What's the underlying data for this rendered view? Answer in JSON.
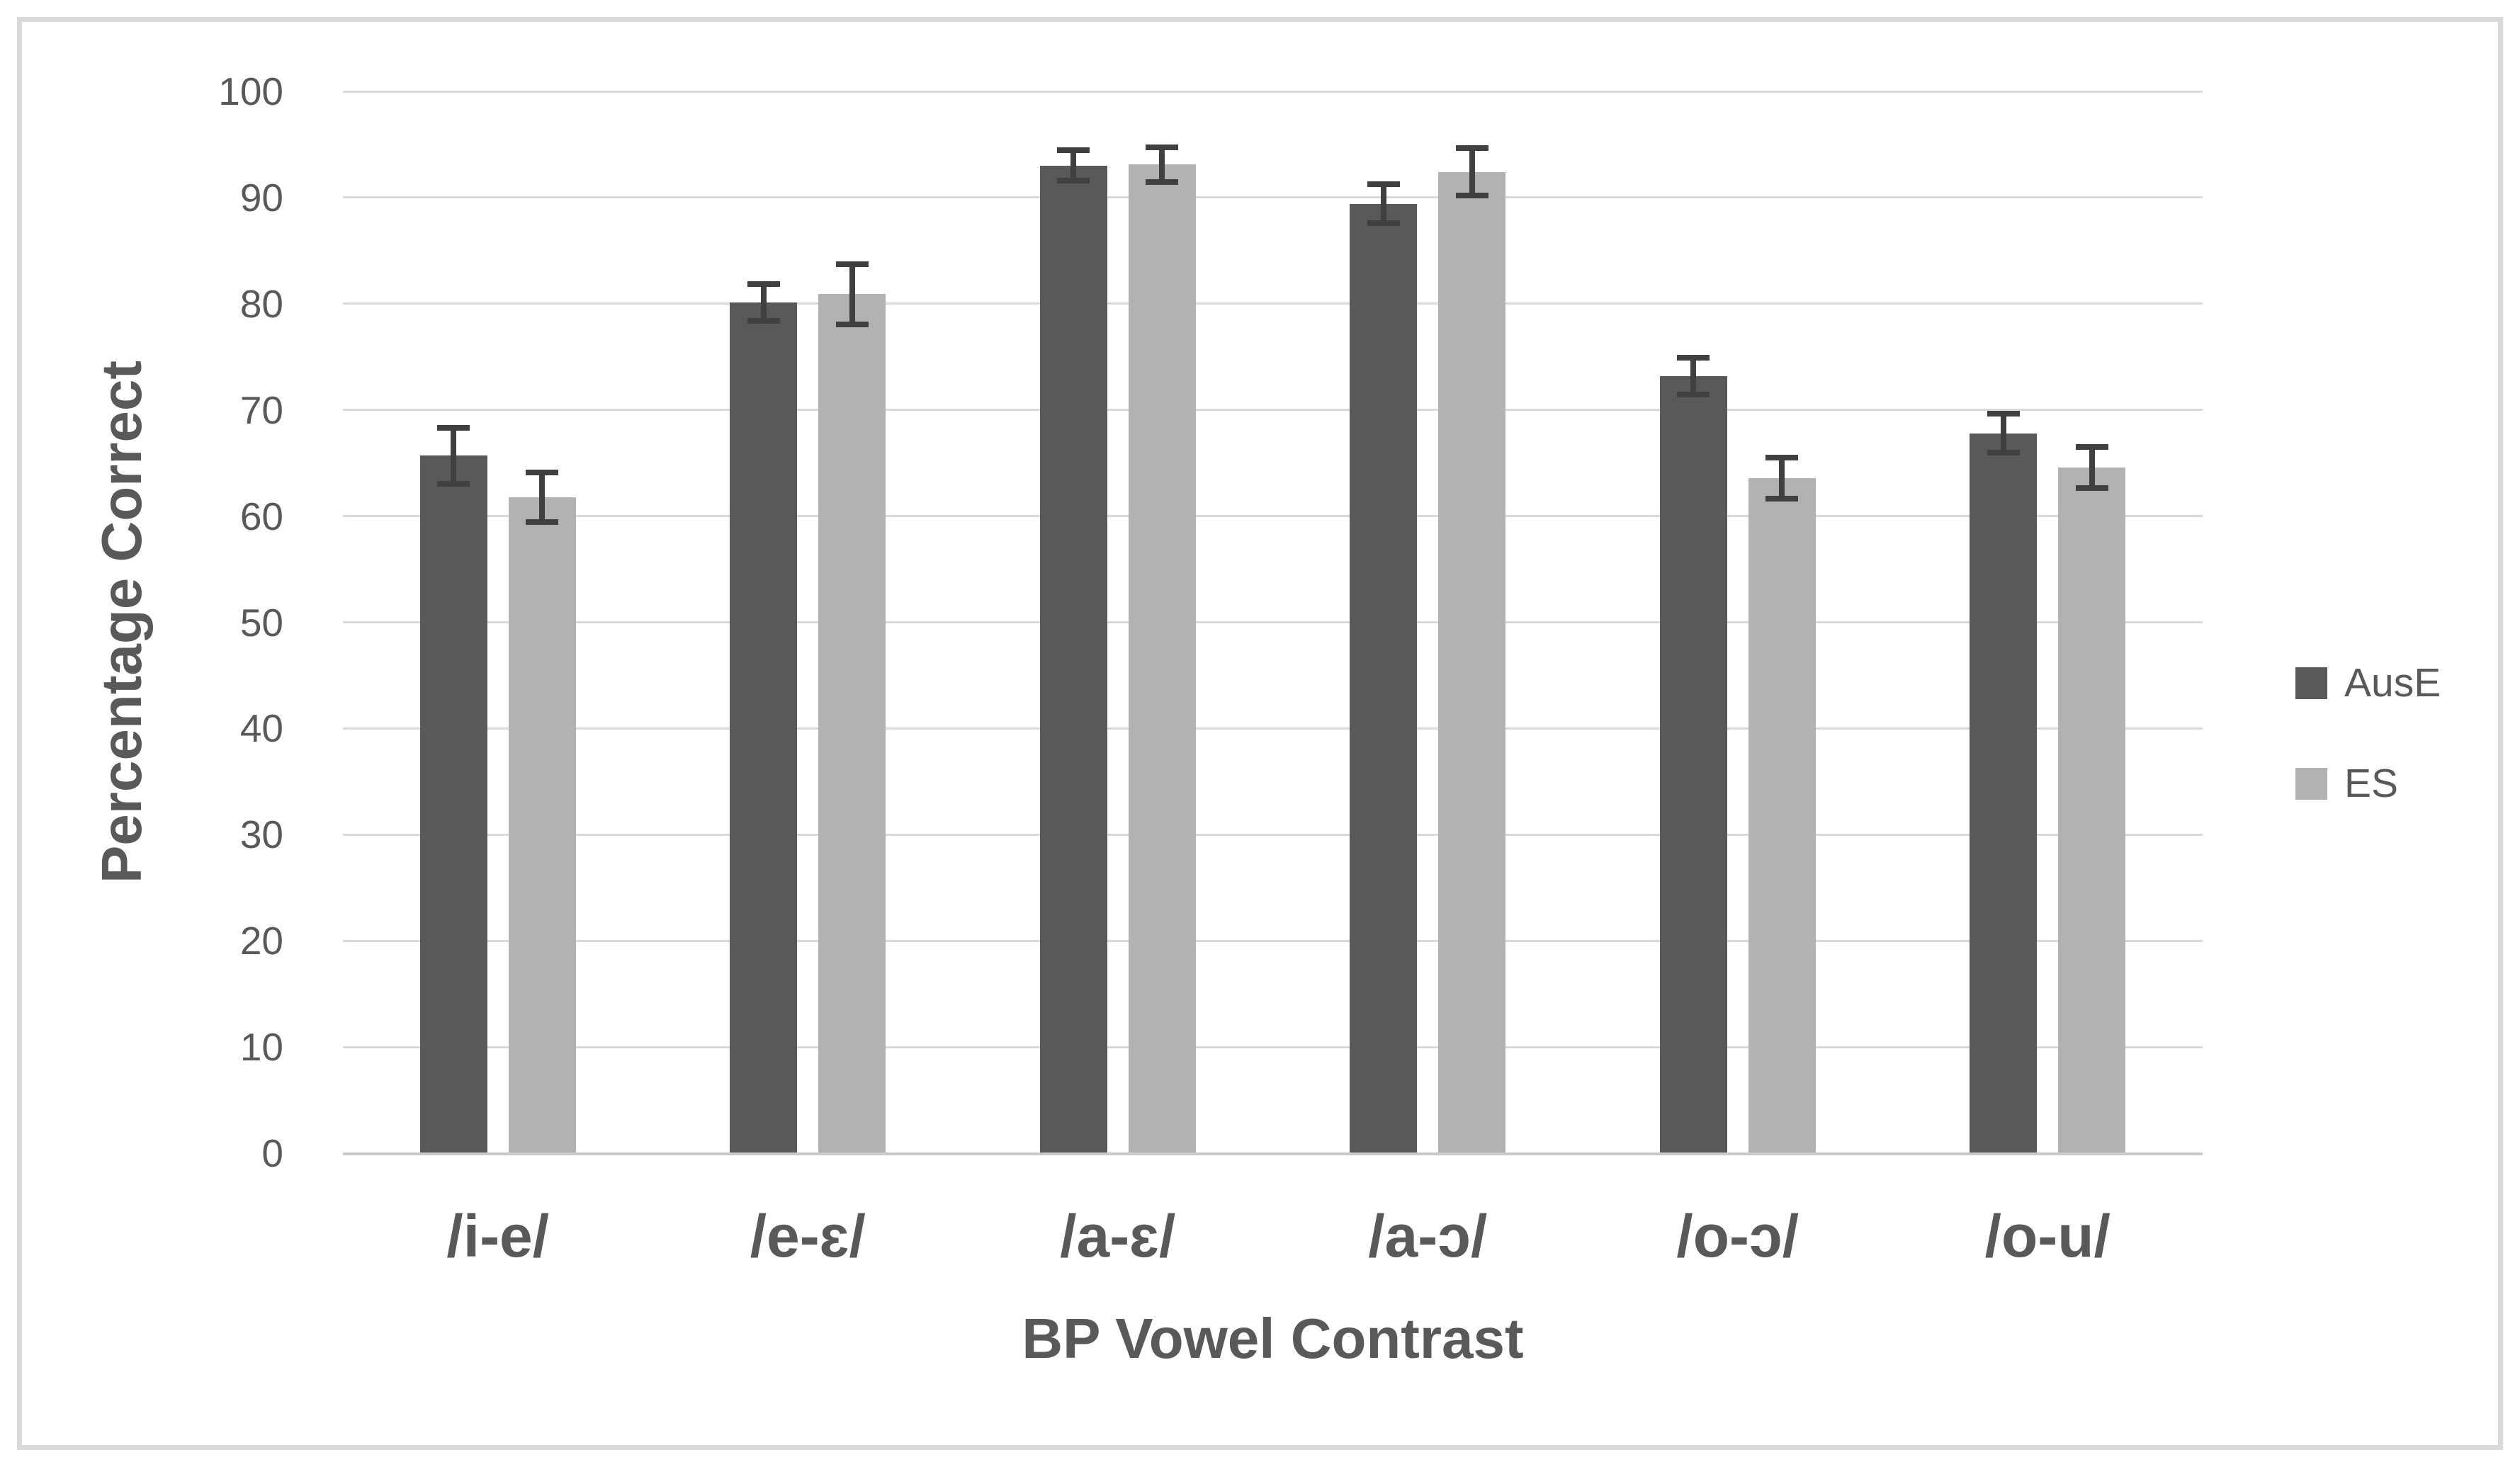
{
  "chart_data": {
    "type": "bar",
    "title": "",
    "categories": [
      "/i-e/",
      "/e-ɛ/",
      "/a-ɛ/",
      "/a-ɔ/",
      "/o-ɔ/",
      "/o-u/"
    ],
    "series": [
      {
        "name": "AusE",
        "color": "#595959",
        "values": [
          65.7,
          80.1,
          93.0,
          89.4,
          73.2,
          67.8
        ],
        "errors": [
          2.9,
          2.0,
          1.7,
          2.1,
          2.0,
          2.1
        ]
      },
      {
        "name": "ES",
        "color": "#B2B2B2",
        "values": [
          61.8,
          80.9,
          93.1,
          92.4,
          63.6,
          64.6
        ],
        "errors": [
          2.6,
          3.1,
          1.9,
          2.5,
          2.2,
          2.2
        ]
      }
    ],
    "xlabel": "BP Vowel Contrast",
    "ylabel": "Percentage Correct",
    "ylim": [
      0,
      100
    ],
    "ytick_step": 10,
    "yticks": [
      0,
      10,
      20,
      30,
      40,
      50,
      60,
      70,
      80,
      90,
      100
    ],
    "grid": true,
    "error_bars": true,
    "legend_position": "right"
  },
  "style": {
    "background": "#FFFFFF",
    "frame_color": "#D9D9D9",
    "grid_color": "#D9D9D9",
    "axis_line_color": "#C9C9C9",
    "text_color": "#595959",
    "error_bar_color": "#404040"
  }
}
